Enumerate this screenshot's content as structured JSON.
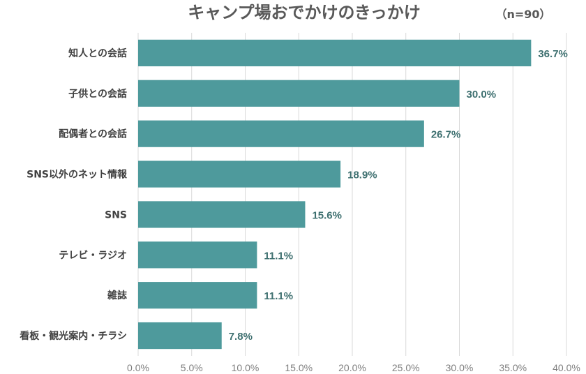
{
  "chart_data": {
    "type": "bar",
    "orientation": "horizontal",
    "title": "キャンプ場おでかけのきっかけ",
    "note": "（n=90）",
    "categories": [
      "知人との会話",
      "子供との会話",
      "配偶者との会話",
      "SNS以外のネット情報",
      "SNS",
      "テレビ・ラジオ",
      "雑誌",
      "看板・観光案内・チラシ"
    ],
    "values": [
      36.7,
      30.0,
      26.7,
      18.9,
      15.6,
      11.1,
      11.1,
      7.8
    ],
    "value_labels": [
      "36.7%",
      "30.0%",
      "26.7%",
      "18.9%",
      "15.6%",
      "11.1%",
      "11.1%",
      "7.8%"
    ],
    "xlim": [
      0,
      40
    ],
    "x_ticks": [
      0,
      5,
      10,
      15,
      20,
      25,
      30,
      35,
      40
    ],
    "x_tick_labels": [
      "0.0%",
      "5.0%",
      "10.0%",
      "15.0%",
      "20.0%",
      "25.0%",
      "30.0%",
      "35.0%",
      "40.0%"
    ],
    "grid": true,
    "colors": {
      "bar": "#4e9a9c",
      "value_label": "#3d6f6f"
    }
  }
}
